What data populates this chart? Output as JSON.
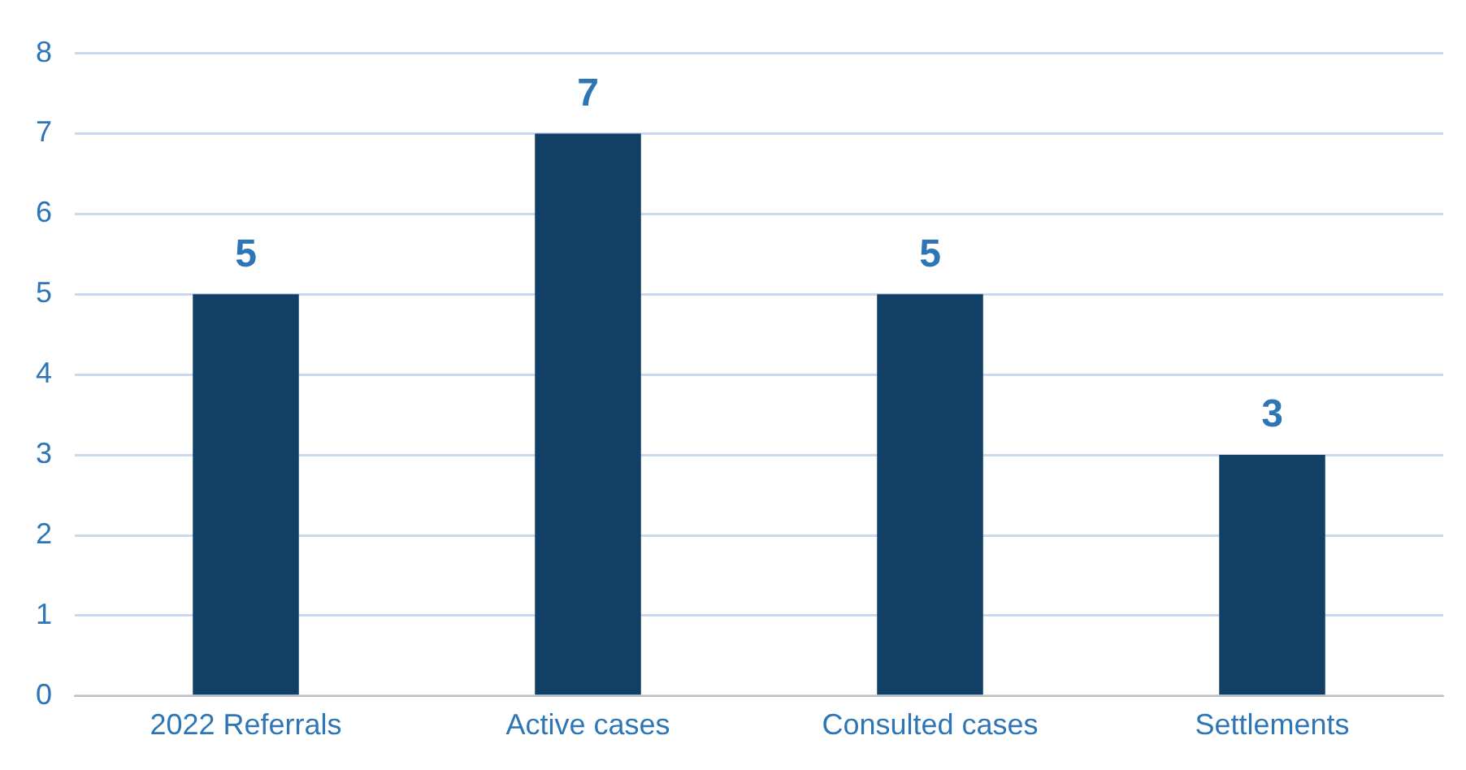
{
  "chart_data": {
    "type": "bar",
    "categories": [
      "2022 Referrals",
      "Active cases",
      "Consulted cases",
      "Settlements"
    ],
    "values": [
      5,
      7,
      5,
      3
    ],
    "color": "#123f66",
    "ylim": [
      0,
      8
    ],
    "yticks": [
      0,
      1,
      2,
      3,
      4,
      5,
      6,
      7,
      8
    ],
    "grid": "y",
    "data_labels": true,
    "legend": false
  }
}
